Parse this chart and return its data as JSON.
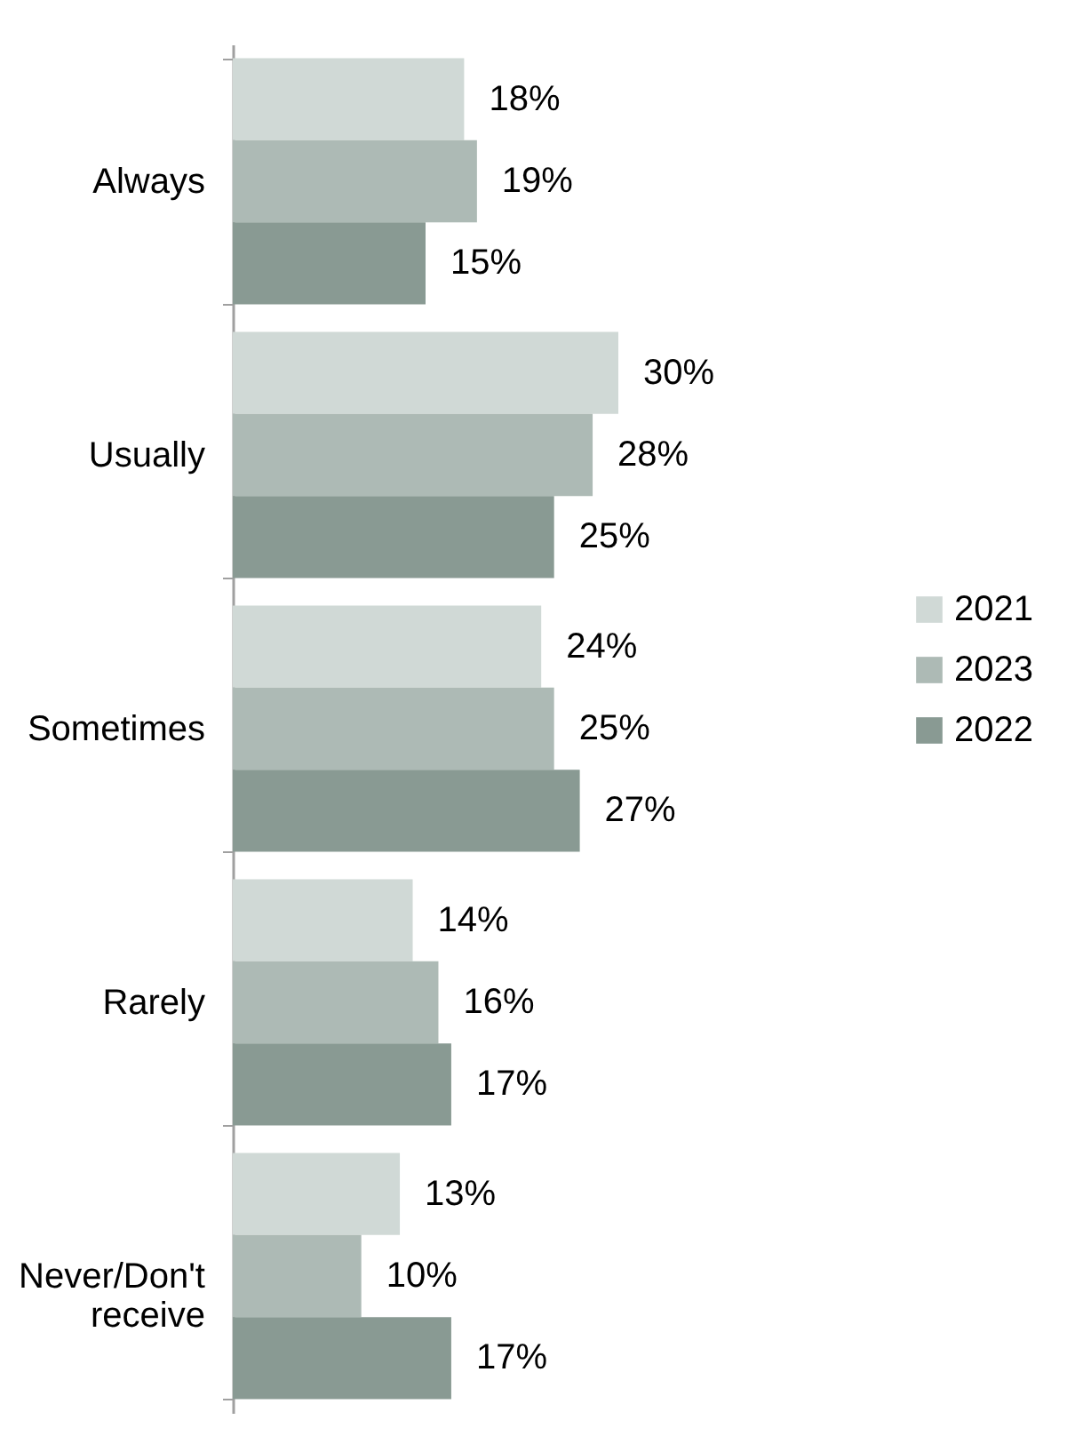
{
  "chart_data": {
    "type": "bar",
    "orientation": "horizontal",
    "categories": [
      "Always",
      "Usually",
      "Sometimes",
      "Rarely",
      "Never/Don't receive"
    ],
    "series": [
      {
        "name": "2021",
        "color": "#d0d9d6",
        "values": [
          18,
          30,
          24,
          14,
          13
        ],
        "value_labels": [
          "18%",
          "30%",
          "24%",
          "14%",
          "13%"
        ]
      },
      {
        "name": "2023",
        "color": "#adbab5",
        "values": [
          19,
          28,
          25,
          16,
          10
        ],
        "value_labels": [
          "19%",
          "28%",
          "25%",
          "16%",
          "10%"
        ]
      },
      {
        "name": "2022",
        "color": "#899a93",
        "values": [
          15,
          25,
          27,
          17,
          17
        ],
        "value_labels": [
          "15%",
          "25%",
          "27%",
          "17%",
          "17%"
        ]
      }
    ],
    "legend": "right",
    "grid": false
  }
}
